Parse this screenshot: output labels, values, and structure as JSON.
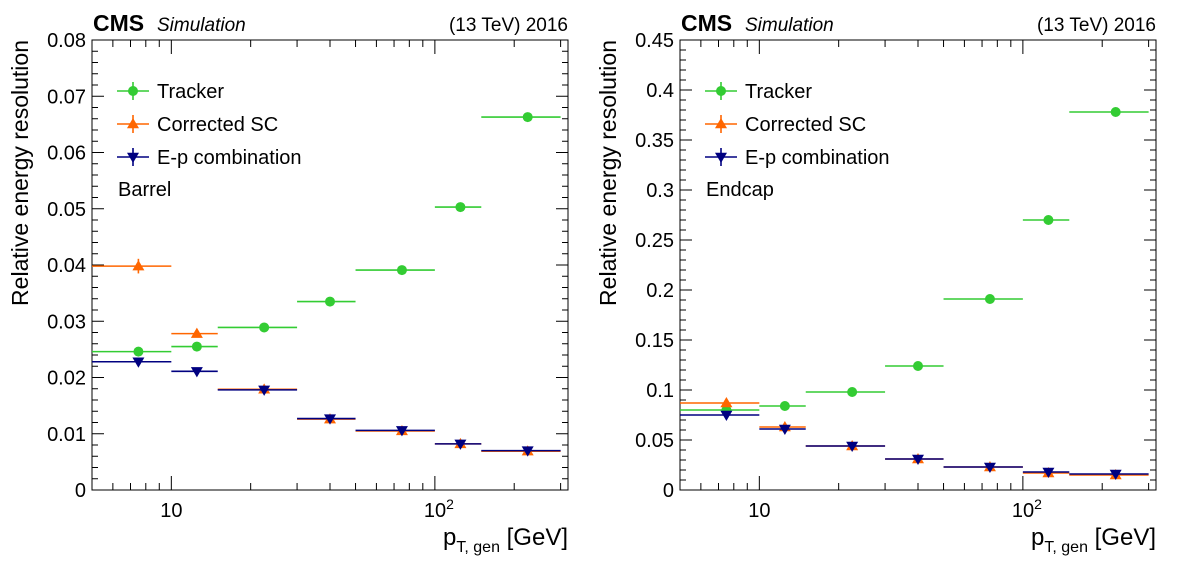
{
  "header": {
    "brand": "CMS",
    "tag": "Simulation",
    "energy_label": "(13 TeV) 2016"
  },
  "legend": [
    "Tracker",
    "Corrected SC",
    "E-p combination"
  ],
  "colors": {
    "tracker": "#33cc33",
    "corrected_sc": "#ff6600",
    "ep": "#000080"
  },
  "chart_data": [
    {
      "type": "scatter",
      "panel": "barrel",
      "region_label": "Barrel",
      "xlabel": "p_{T, gen} [GeV]",
      "xlabel_main": "p",
      "xlabel_sub": "T, gen",
      "xlabel_unit": "[GeV]",
      "ylabel": "Relative energy resolution",
      "xscale": "log",
      "xlim": [
        5,
        320
      ],
      "ylim": [
        0,
        0.08
      ],
      "yticks": [
        "0",
        "0.01",
        "0.02",
        "0.03",
        "0.04",
        "0.05",
        "0.06",
        "0.07",
        "0.08"
      ],
      "xticks": [
        "10",
        "10^2"
      ],
      "legend_position": "top-left",
      "grid": false,
      "series": [
        {
          "name": "Tracker",
          "key": "tracker",
          "marker": "circle",
          "bins": [
            [
              5,
              10
            ],
            [
              10,
              15
            ],
            [
              15,
              30
            ],
            [
              30,
              50
            ],
            [
              50,
              100
            ],
            [
              100,
              150
            ],
            [
              150,
              300
            ]
          ],
          "x": [
            7.5,
            12.5,
            22.5,
            40,
            75,
            125,
            225
          ],
          "y": [
            0.0246,
            0.0255,
            0.0289,
            0.0335,
            0.0391,
            0.0503,
            0.0663
          ],
          "yerr": [
            0.0002,
            0.0002,
            0.0002,
            0.0002,
            0.0002,
            0.0003,
            0.0004
          ]
        },
        {
          "name": "Corrected SC",
          "key": "corrected_sc",
          "marker": "triangle-up",
          "bins": [
            [
              5,
              10
            ],
            [
              10,
              15
            ],
            [
              15,
              30
            ],
            [
              30,
              50
            ],
            [
              50,
              100
            ],
            [
              100,
              150
            ],
            [
              150,
              300
            ]
          ],
          "x": [
            7.5,
            12.5,
            22.5,
            40,
            75,
            125,
            225
          ],
          "y": [
            0.0398,
            0.0278,
            0.0179,
            0.0126,
            0.0105,
            0.0082,
            0.0069
          ],
          "yerr": [
            0.0013,
            0.0004,
            0.0002,
            0.0002,
            0.0002,
            0.0002,
            0.0002
          ]
        },
        {
          "name": "E-p combination",
          "key": "ep",
          "marker": "triangle-down",
          "bins": [
            [
              5,
              10
            ],
            [
              10,
              15
            ],
            [
              15,
              30
            ],
            [
              30,
              50
            ],
            [
              50,
              100
            ],
            [
              100,
              150
            ],
            [
              150,
              300
            ]
          ],
          "x": [
            7.5,
            12.5,
            22.5,
            40,
            75,
            125,
            225
          ],
          "y": [
            0.0228,
            0.0211,
            0.0178,
            0.0127,
            0.0106,
            0.0082,
            0.007
          ],
          "yerr": [
            0.0003,
            0.0002,
            0.0002,
            0.0002,
            0.0002,
            0.0002,
            0.0002
          ]
        }
      ]
    },
    {
      "type": "scatter",
      "panel": "endcap",
      "region_label": "Endcap",
      "xlabel": "p_{T, gen} [GeV]",
      "xlabel_main": "p",
      "xlabel_sub": "T, gen",
      "xlabel_unit": "[GeV]",
      "ylabel": "Relative energy resolution",
      "xscale": "log",
      "xlim": [
        5,
        320
      ],
      "ylim": [
        0,
        0.45
      ],
      "yticks": [
        "0",
        "0.05",
        "0.1",
        "0.15",
        "0.2",
        "0.25",
        "0.3",
        "0.35",
        "0.4",
        "0.45"
      ],
      "xticks": [
        "10",
        "10^2"
      ],
      "legend_position": "top-left",
      "grid": false,
      "series": [
        {
          "name": "Tracker",
          "key": "tracker",
          "marker": "circle",
          "bins": [
            [
              5,
              10
            ],
            [
              10,
              15
            ],
            [
              15,
              30
            ],
            [
              30,
              50
            ],
            [
              50,
              100
            ],
            [
              100,
              150
            ],
            [
              150,
              300
            ]
          ],
          "x": [
            7.5,
            12.5,
            22.5,
            40,
            75,
            125,
            225
          ],
          "y": [
            0.08,
            0.084,
            0.098,
            0.124,
            0.191,
            0.27,
            0.378
          ],
          "yerr": [
            0.001,
            0.001,
            0.001,
            0.001,
            0.002,
            0.002,
            0.002
          ]
        },
        {
          "name": "Corrected SC",
          "key": "corrected_sc",
          "marker": "triangle-up",
          "bins": [
            [
              5,
              10
            ],
            [
              10,
              15
            ],
            [
              15,
              30
            ],
            [
              30,
              50
            ],
            [
              50,
              100
            ],
            [
              100,
              150
            ],
            [
              150,
              300
            ]
          ],
          "x": [
            7.5,
            12.5,
            22.5,
            40,
            75,
            125,
            225
          ],
          "y": [
            0.087,
            0.063,
            0.044,
            0.031,
            0.023,
            0.017,
            0.015
          ],
          "yerr": [
            0.002,
            0.001,
            0.001,
            0.001,
            0.001,
            0.001,
            0.001
          ]
        },
        {
          "name": "E-p combination",
          "key": "ep",
          "marker": "triangle-down",
          "bins": [
            [
              5,
              10
            ],
            [
              10,
              15
            ],
            [
              15,
              30
            ],
            [
              30,
              50
            ],
            [
              50,
              100
            ],
            [
              100,
              150
            ],
            [
              150,
              300
            ]
          ],
          "x": [
            7.5,
            12.5,
            22.5,
            40,
            75,
            125,
            225
          ],
          "y": [
            0.075,
            0.061,
            0.044,
            0.031,
            0.023,
            0.018,
            0.016
          ],
          "yerr": [
            0.001,
            0.001,
            0.001,
            0.001,
            0.001,
            0.001,
            0.001
          ]
        }
      ]
    }
  ]
}
